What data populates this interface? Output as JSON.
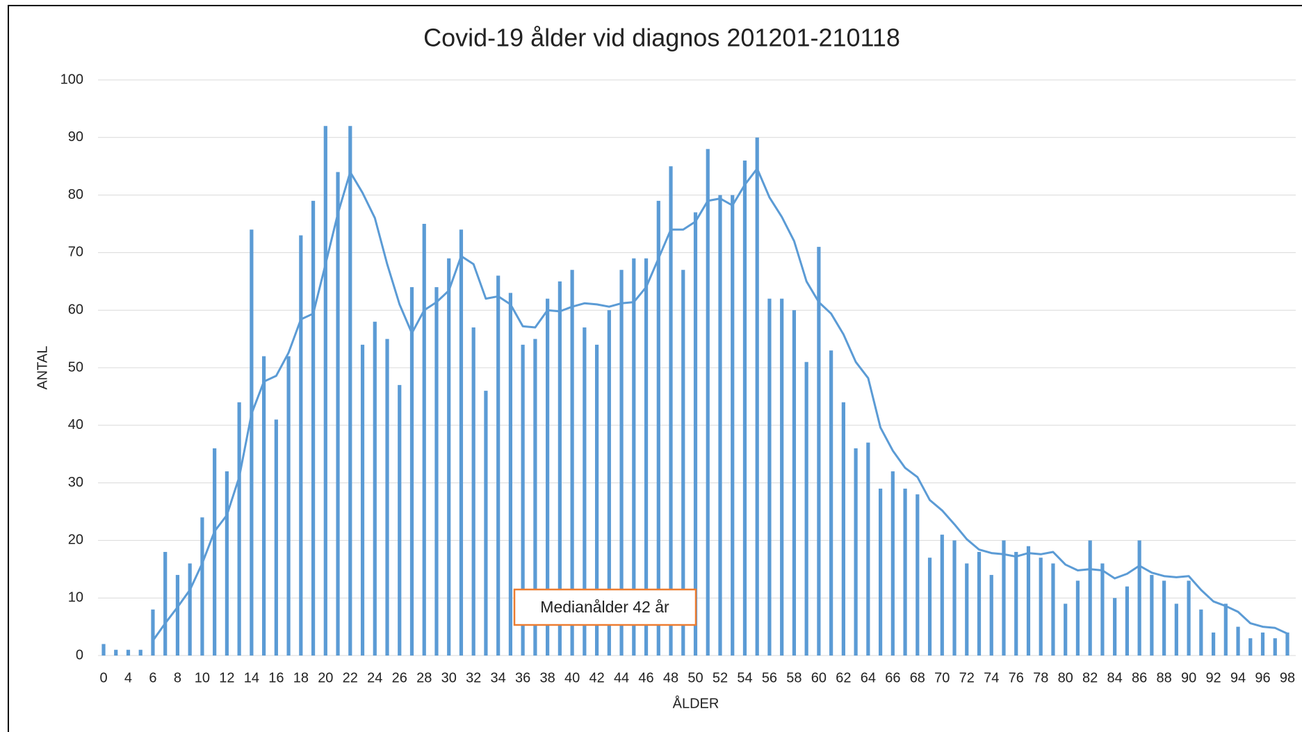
{
  "chart_data": {
    "type": "bar",
    "title": "Covid-19 ålder vid diagnos 201201-210118",
    "x_label": "ÅLDER",
    "y_label": "ANTAL",
    "annotation": "Medianålder 42 år",
    "categories": [
      "0",
      null,
      "4",
      null,
      "6",
      null,
      "8",
      null,
      "10",
      null,
      "12",
      null,
      "14",
      null,
      "16",
      null,
      "18",
      null,
      "20",
      null,
      "22",
      null,
      "24",
      null,
      "26",
      null,
      "28",
      null,
      "30",
      null,
      "32",
      null,
      "34",
      null,
      "36",
      null,
      "38",
      null,
      "40",
      null,
      "42",
      null,
      "44",
      null,
      "46",
      null,
      "48",
      null,
      "50",
      null,
      "52",
      null,
      "54",
      null,
      "56",
      null,
      "58",
      null,
      "60",
      null,
      "62",
      null,
      "64",
      null,
      "66",
      null,
      "68",
      null,
      "70",
      null,
      "72",
      null,
      "74",
      null,
      "76",
      null,
      "78",
      null,
      "80",
      null,
      "82",
      null,
      "84",
      null,
      "86",
      null,
      "88",
      null,
      "90",
      null,
      "92",
      null,
      "94",
      null,
      "96",
      null,
      "98"
    ],
    "values": [
      2,
      1,
      1,
      1,
      8,
      18,
      14,
      16,
      24,
      36,
      32,
      44,
      74,
      52,
      41,
      52,
      73,
      79,
      92,
      84,
      92,
      54,
      58,
      55,
      47,
      64,
      75,
      64,
      69,
      74,
      57,
      46,
      66,
      63,
      54,
      55,
      62,
      65,
      67,
      57,
      54,
      60,
      67,
      69,
      69,
      79,
      85,
      67,
      77,
      88,
      80,
      80,
      86,
      90,
      62,
      62,
      60,
      51,
      71,
      53,
      44,
      36,
      37,
      29,
      32,
      29,
      28,
      17,
      21,
      20,
      16,
      18,
      14,
      20,
      18,
      19,
      17,
      16,
      9,
      13,
      20,
      16,
      10,
      12,
      20,
      14,
      13,
      9,
      13,
      8,
      4,
      9,
      5,
      3,
      4,
      3,
      4
    ],
    "color": "#5b9bd5",
    "series": [
      {
        "color": "#5b9bd5",
        "type": "line",
        "values": [
          null,
          null,
          null,
          null,
          2.6,
          5.6,
          8.4,
          11.4,
          16,
          21.6,
          24.4,
          31,
          42,
          47.6,
          48.6,
          52.6,
          58.4,
          59.4,
          68,
          76.8,
          84,
          80.4,
          76,
          68,
          61,
          56,
          60,
          61.4,
          63.4,
          69.4,
          68,
          62,
          62.4,
          61,
          57.2,
          57,
          60,
          59.8,
          60.6,
          61.2,
          61,
          60.6,
          61.2,
          61.4,
          64,
          69,
          74,
          74,
          75.4,
          79,
          79.4,
          78.2,
          81.8,
          84.6,
          79.6,
          76.2,
          72,
          65,
          61.4,
          59.4,
          55.8,
          51,
          48.2,
          39.6,
          35.6,
          32.6,
          31,
          27,
          25.2,
          22.8,
          20.2,
          18.4,
          17.8,
          17.6,
          17.2,
          17.8,
          17.6,
          18,
          15.8,
          14.8,
          15,
          14.8,
          13.4,
          14.2,
          15.6,
          14.4,
          13.8,
          13.6,
          13.8,
          11.4,
          9.4,
          8.6,
          7.6,
          5.6,
          5,
          4.8,
          3.8
        ]
      }
    ],
    "ylim": [
      0,
      100
    ],
    "yticks": [
      0,
      10,
      20,
      30,
      40,
      50,
      60,
      70,
      80,
      90,
      100
    ],
    "grid": true
  }
}
